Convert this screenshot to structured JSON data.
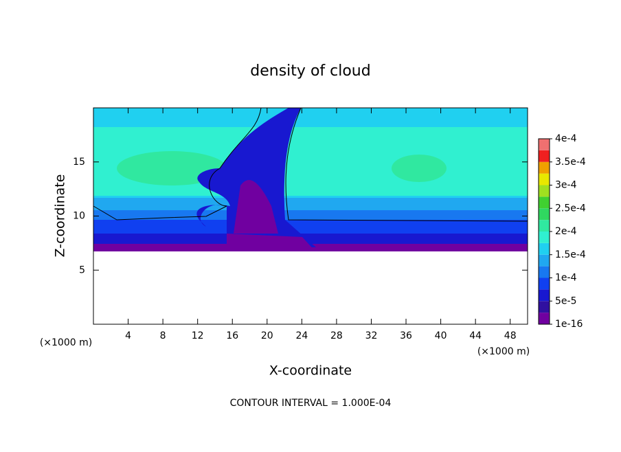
{
  "chart_data": {
    "type": "contour",
    "title": "density of cloud",
    "xlabel": "X-coordinate",
    "ylabel": "Z-coordinate",
    "x_unit": "(×1000 m)",
    "y_unit": "(×1000 m)",
    "annotation": "CONTOUR INTERVAL = 1.000E-04",
    "xlim": [
      0,
      50
    ],
    "xticks": [
      4,
      8,
      12,
      16,
      20,
      24,
      28,
      32,
      36,
      40,
      44,
      48
    ],
    "ylim": [
      0,
      20
    ],
    "yticks": [
      5,
      10,
      15
    ],
    "colorbar": {
      "lim": [
        0,
        0.0004
      ],
      "ticks": [
        {
          "value": 1e-16,
          "label": "1e-16"
        },
        {
          "value": 5e-05,
          "label": "5e-5"
        },
        {
          "value": 0.0001,
          "label": "1e-4"
        },
        {
          "value": 0.00015,
          "label": "1.5e-4"
        },
        {
          "value": 0.0002,
          "label": "2e-4"
        },
        {
          "value": 0.00025,
          "label": "2.5e-4"
        },
        {
          "value": 0.0003,
          "label": "3e-4"
        },
        {
          "value": 0.00035,
          "label": "3.5e-4"
        },
        {
          "value": 0.0004,
          "label": "4e-4"
        }
      ],
      "colors": [
        "#7000a0",
        "#3010a0",
        "#1818d0",
        "#1040f0",
        "#1878f0",
        "#20a8f0",
        "#20d0f0",
        "#30f0d0",
        "#30e8a0",
        "#30d860",
        "#40d030",
        "#a0e020",
        "#e8e800",
        "#f0a000",
        "#f02020",
        "#f07070"
      ]
    }
  }
}
